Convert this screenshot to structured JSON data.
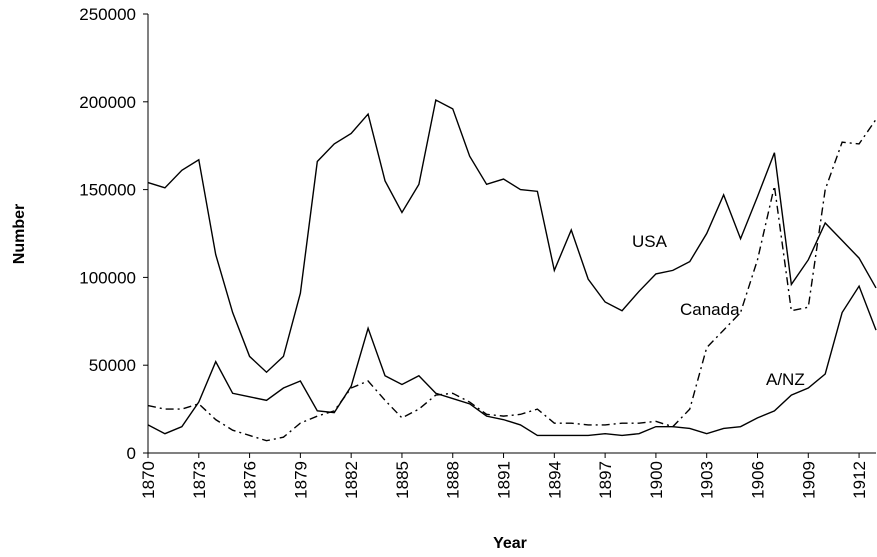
{
  "chart_data": {
    "type": "line",
    "x_label": "Year",
    "y_label": "Number",
    "x": [
      1870,
      1871,
      1872,
      1873,
      1874,
      1875,
      1876,
      1877,
      1878,
      1879,
      1880,
      1881,
      1882,
      1883,
      1884,
      1885,
      1886,
      1887,
      1888,
      1889,
      1890,
      1891,
      1892,
      1893,
      1894,
      1895,
      1896,
      1897,
      1898,
      1899,
      1900,
      1901,
      1902,
      1903,
      1904,
      1905,
      1906,
      1907,
      1908,
      1909,
      1910,
      1911,
      1912,
      1913
    ],
    "xlim": [
      1870,
      1913
    ],
    "xticks": [
      1870,
      1873,
      1876,
      1879,
      1882,
      1885,
      1888,
      1891,
      1894,
      1897,
      1900,
      1903,
      1906,
      1909,
      1912
    ],
    "ylim": [
      0,
      250000
    ],
    "yticks": [
      0,
      50000,
      100000,
      150000,
      200000,
      250000
    ],
    "grid": false,
    "series": [
      {
        "name": "USA",
        "color": "#000000",
        "line_style": "solid",
        "values": [
          154000,
          151000,
          161000,
          167000,
          113000,
          80000,
          55000,
          46000,
          55000,
          91000,
          166000,
          176000,
          182000,
          193000,
          155000,
          137000,
          153000,
          201000,
          196000,
          169000,
          153000,
          156000,
          150000,
          149000,
          104000,
          127000,
          99000,
          86000,
          81000,
          92000,
          102000,
          104000,
          109000,
          125000,
          147000,
          122000,
          146000,
          171000,
          96000,
          110000,
          131000,
          121000,
          111000,
          94000
        ]
      },
      {
        "name": "Canada",
        "color": "#000000",
        "line_style": "dashdot",
        "values": [
          27000,
          25000,
          25000,
          28000,
          19000,
          13000,
          10000,
          7000,
          9000,
          17000,
          21000,
          24000,
          37000,
          41000,
          30000,
          20000,
          25000,
          33000,
          34000,
          29000,
          22000,
          21000,
          22000,
          25000,
          17000,
          17000,
          16000,
          16000,
          17000,
          17000,
          18000,
          15000,
          25000,
          60000,
          70000,
          80000,
          110000,
          152000,
          81000,
          83000,
          150000,
          177000,
          176000,
          190000
        ]
      },
      {
        "name": "A/NZ",
        "color": "#000000",
        "line_style": "solid",
        "values": [
          16000,
          11000,
          15000,
          29000,
          52000,
          34000,
          32000,
          30000,
          37000,
          41000,
          24000,
          23000,
          38000,
          71000,
          44000,
          39000,
          44000,
          34000,
          31000,
          28000,
          21000,
          19000,
          16000,
          10000,
          10000,
          10000,
          10000,
          11000,
          10000,
          11000,
          15000,
          15000,
          14000,
          11000,
          14000,
          15000,
          20000,
          24000,
          33000,
          37000,
          45000,
          80000,
          95000,
          70000
        ]
      }
    ]
  }
}
